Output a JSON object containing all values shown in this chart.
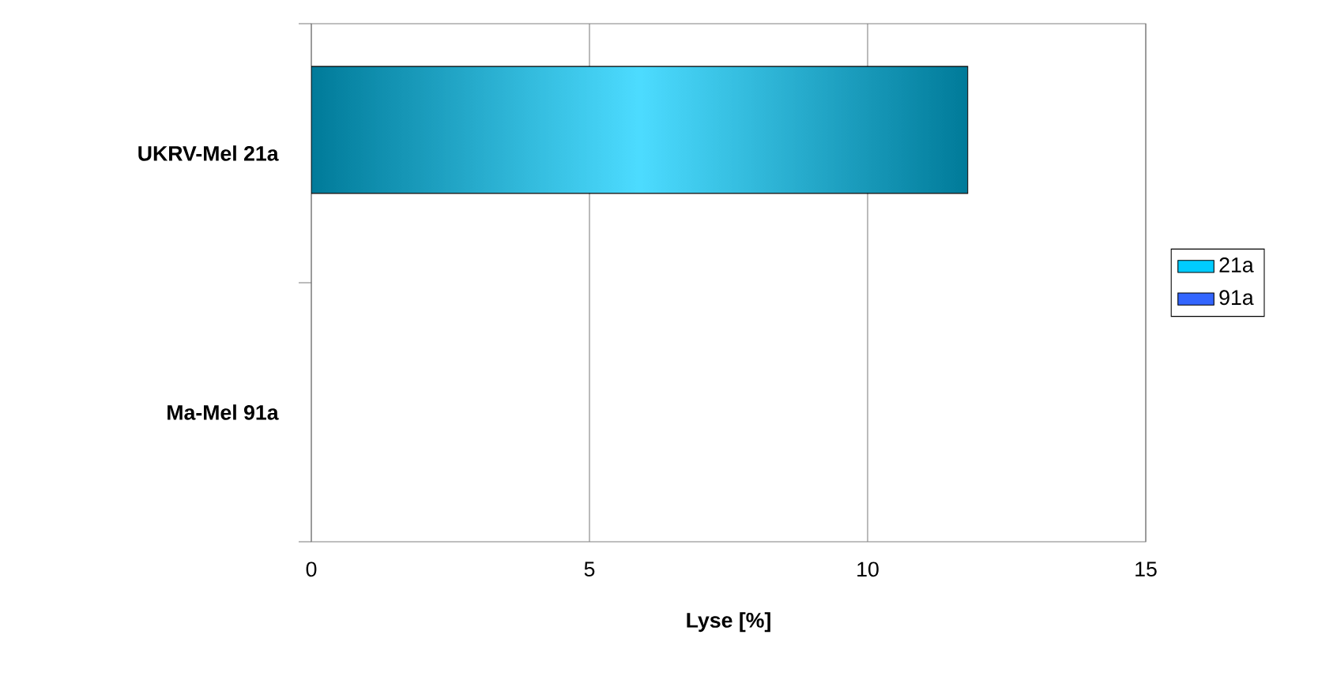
{
  "chart_data": {
    "type": "bar",
    "orientation": "horizontal",
    "xlabel": "Lyse [%]",
    "categories": [
      "UKRV-Mel 21a",
      "Ma-Mel 91a"
    ],
    "series": [
      {
        "name": "21a",
        "color": "#00ccff",
        "values": [
          11.8,
          null
        ]
      },
      {
        "name": "91a",
        "color": "#3366ff",
        "values": [
          null,
          null
        ]
      }
    ],
    "xlim": [
      0,
      15
    ],
    "xticks": [
      0,
      5,
      10,
      15
    ],
    "grid": "x",
    "legend": "right"
  }
}
